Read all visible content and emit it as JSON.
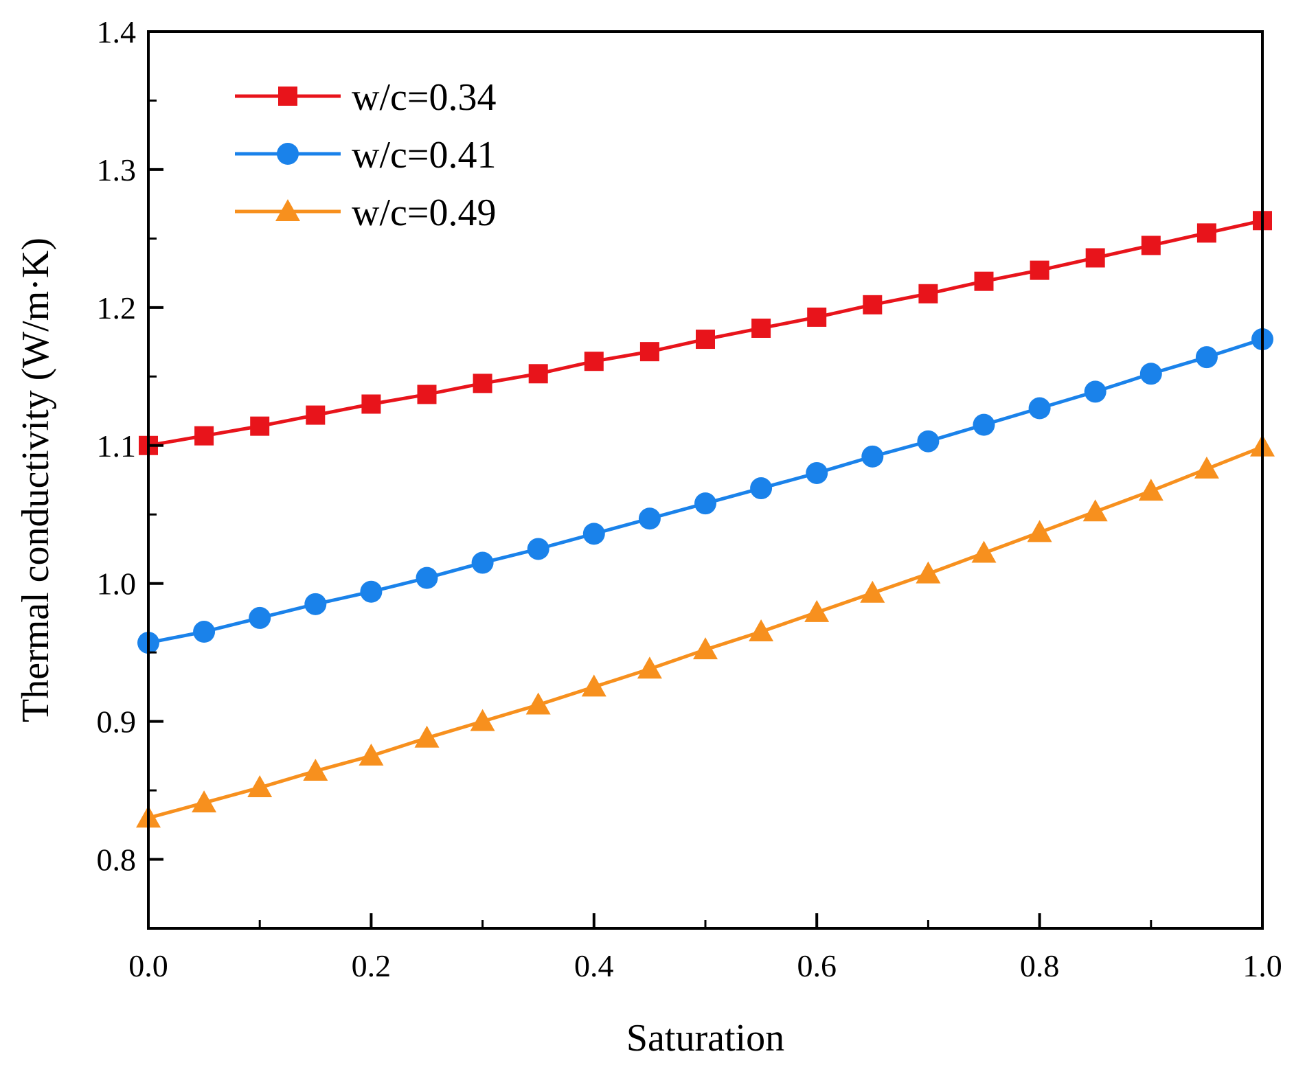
{
  "chart_data": {
    "type": "line",
    "title": "",
    "xlabel": "Saturation",
    "ylabel": "Thermal conductivity (W/m·K)",
    "xlim": [
      0,
      1.0
    ],
    "ylim": [
      0.75,
      1.4
    ],
    "xticks": [
      "0.0",
      "0.2",
      "0.4",
      "0.6",
      "0.8",
      "1.0"
    ],
    "yticks": [
      "0.8",
      "0.9",
      "1.0",
      "1.1",
      "1.2",
      "1.3",
      "1.4"
    ],
    "grid": false,
    "legend_position": "top-left",
    "x": [
      0,
      0.05,
      0.1,
      0.15,
      0.2,
      0.25,
      0.3,
      0.35,
      0.4,
      0.45,
      0.5,
      0.55,
      0.6,
      0.65,
      0.7,
      0.75,
      0.8,
      0.85,
      0.9,
      0.95,
      1.0
    ],
    "series": [
      {
        "name": "w/c=0.34",
        "color": "#e8141b",
        "marker": "square",
        "values": [
          1.1,
          1.107,
          1.114,
          1.122,
          1.13,
          1.137,
          1.145,
          1.152,
          1.161,
          1.168,
          1.177,
          1.185,
          1.193,
          1.202,
          1.21,
          1.219,
          1.227,
          1.236,
          1.245,
          1.254,
          1.263
        ]
      },
      {
        "name": "w/c=0.41",
        "color": "#1a82ea",
        "marker": "circle",
        "values": [
          0.957,
          0.965,
          0.975,
          0.985,
          0.994,
          1.004,
          1.015,
          1.025,
          1.036,
          1.047,
          1.058,
          1.069,
          1.08,
          1.092,
          1.103,
          1.115,
          1.127,
          1.139,
          1.152,
          1.164,
          1.177
        ]
      },
      {
        "name": "w/c=0.49",
        "color": "#f7901e",
        "marker": "triangle",
        "values": [
          0.83,
          0.841,
          0.852,
          0.864,
          0.875,
          0.888,
          0.9,
          0.912,
          0.925,
          0.938,
          0.952,
          0.965,
          0.979,
          0.993,
          1.007,
          1.022,
          1.037,
          1.052,
          1.067,
          1.083,
          1.099
        ]
      }
    ]
  }
}
